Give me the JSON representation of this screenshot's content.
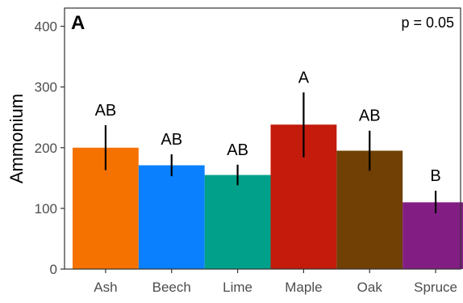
{
  "chart_data": {
    "type": "bar",
    "panel_label": "A",
    "annotation": "p = 0.05",
    "ylabel": "Ammonium",
    "xlabel": "",
    "ylim": [
      0,
      430
    ],
    "y_ticks": [
      0,
      100,
      200,
      300,
      400
    ],
    "grid": false,
    "categories": [
      "Ash",
      "Beech",
      "Lime",
      "Maple",
      "Oak",
      "Spruce"
    ],
    "values": [
      200,
      171,
      155,
      238,
      195,
      110
    ],
    "error_low": [
      163,
      153,
      138,
      184,
      162,
      92
    ],
    "error_high": [
      237,
      189,
      172,
      291,
      228,
      129
    ],
    "group_letters": [
      "AB",
      "AB",
      "AB",
      "A",
      "AB",
      "B"
    ],
    "colors": [
      "#F57200",
      "#0A80FF",
      "#00A08A",
      "#C41B0C",
      "#704004",
      "#821E83"
    ],
    "error_color": "#000000"
  }
}
